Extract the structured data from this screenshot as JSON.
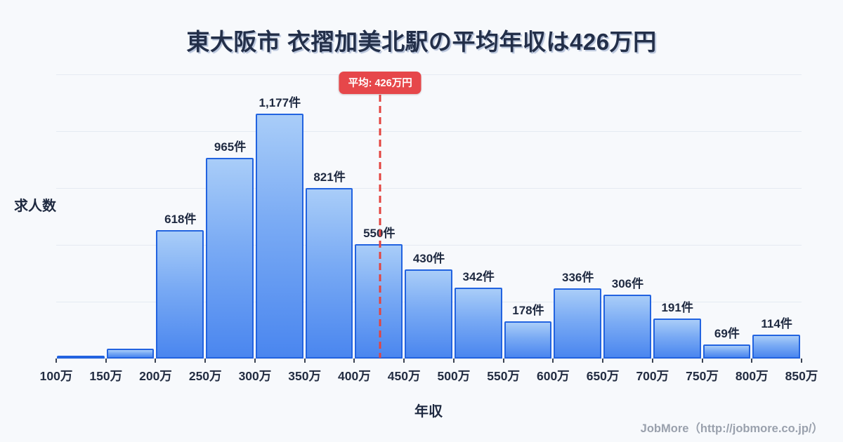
{
  "title": "東大阪市 衣摺加美北駅の平均年収は426万円",
  "y_axis_label": "求人数",
  "x_axis_label": "年収",
  "footer": "JobMore（http://jobmore.co.jp/）",
  "average_badge_label": "平均: 426万円",
  "colors": {
    "background": "#f7f9fc",
    "title": "#232f49",
    "bar_fill_top": "#a9cdf8",
    "bar_fill_bottom": "#4a86ef",
    "bar_border": "#2263e0",
    "gridline": "#e5eaf2",
    "average_red": "#e6474a",
    "footer_text": "#9aa1ad"
  },
  "chart_data": {
    "type": "bar",
    "title": "東大阪市 衣摺加美北駅の平均年収は426万円",
    "xlabel": "年収",
    "ylabel": "求人数",
    "x_ticks": [
      "100万",
      "150万",
      "200万",
      "250万",
      "300万",
      "350万",
      "400万",
      "450万",
      "500万",
      "550万",
      "600万",
      "650万",
      "700万",
      "750万",
      "800万",
      "850万"
    ],
    "bin_edges_man_yen": [
      100,
      150,
      200,
      250,
      300,
      350,
      400,
      450,
      500,
      550,
      600,
      650,
      700,
      750,
      800,
      850
    ],
    "values": [
      7,
      47,
      618,
      965,
      1177,
      821,
      550,
      430,
      342,
      178,
      336,
      306,
      191,
      69,
      114
    ],
    "labels": [
      "",
      "",
      "618件",
      "965件",
      "1,177件",
      "821件",
      "550件",
      "430件",
      "342件",
      "178件",
      "336件",
      "306件",
      "191件",
      "69件",
      "114件"
    ],
    "average": 426,
    "average_label": "平均: 426万円",
    "x_range": [
      100,
      850
    ],
    "ylim": [
      0,
      1366
    ],
    "gridline_count": 6,
    "grid": true,
    "legend_position": "none"
  }
}
